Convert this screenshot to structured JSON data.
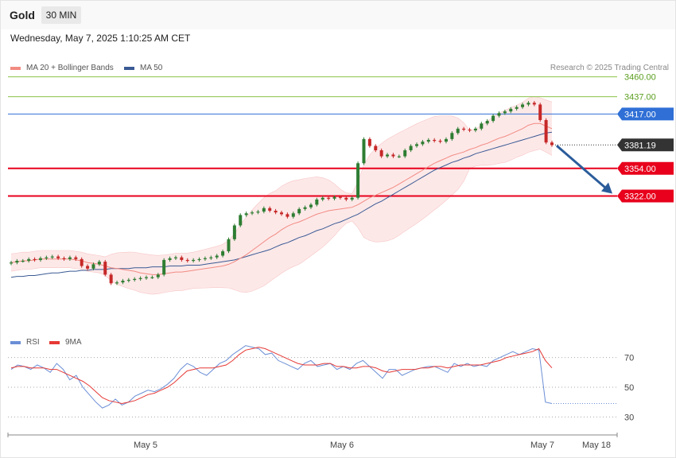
{
  "header": {
    "title": "Gold",
    "timeframe": "30 MIN",
    "datetime": "Wednesday, May 7, 2025 1:10:25 AM CET"
  },
  "legend_price": {
    "ma20": "MA 20 + Bollinger Bands",
    "ma50": "MA 50",
    "credit": "Research © 2025 Trading Central"
  },
  "legend_rsi": {
    "rsi": "RSI",
    "ma9": "9MA"
  },
  "colors": {
    "ma20": "#f28b82",
    "ma50": "#3a5a94",
    "bollinger_fill": "#fde2e2",
    "up_candle": "#2e7d32",
    "down_candle": "#c62828",
    "rsi": "#6b8fd6",
    "rsi_ma": "#e53935",
    "support": "#e8001c",
    "resistance_green": "#8bc34a",
    "pivot": "#2f6fd6",
    "last_price": "#333333",
    "arrow": "#2b5c9a"
  },
  "chart_data": [
    {
      "type": "line",
      "title": "Gold 30 MIN",
      "x_ticks": [
        "May 5",
        "May 6",
        "May 7",
        "May 18"
      ],
      "ylim": [
        3166,
        3491
      ],
      "levels": [
        {
          "label": "3460.00",
          "value": 3460.0,
          "kind": "resistance"
        },
        {
          "label": "3437.00",
          "value": 3437.0,
          "kind": "resistance"
        },
        {
          "label": "3417.00",
          "value": 3417.0,
          "kind": "pivot"
        },
        {
          "label": "3381.19",
          "value": 3381.19,
          "kind": "last"
        },
        {
          "label": "3354.00",
          "value": 3354.0,
          "kind": "support"
        },
        {
          "label": "3322.00",
          "value": 3322.0,
          "kind": "support"
        }
      ],
      "forecast_arrow": {
        "from": 3381.19,
        "to": 3322.0
      },
      "series": [
        {
          "name": "Price",
          "values": [
            3245,
            3247,
            3247,
            3249,
            3248,
            3250,
            3251,
            3252,
            3250,
            3249,
            3251,
            3249,
            3241,
            3238,
            3243,
            3246,
            3231,
            3221,
            3222,
            3224,
            3225,
            3226,
            3227,
            3228,
            3228,
            3231,
            3248,
            3250,
            3251,
            3248,
            3247,
            3248,
            3249,
            3250,
            3251,
            3253,
            3258,
            3272,
            3288,
            3300,
            3302,
            3303,
            3304,
            3308,
            3305,
            3303,
            3301,
            3298,
            3302,
            3307,
            3309,
            3312,
            3318,
            3320,
            3319,
            3321,
            3320,
            3318,
            3320,
            3360,
            3388,
            3380,
            3375,
            3368,
            3370,
            3368,
            3368,
            3375,
            3380,
            3382,
            3385,
            3387,
            3386,
            3385,
            3388,
            3395,
            3400,
            3399,
            3398,
            3400,
            3406,
            3409,
            3415,
            3418,
            3420,
            3423,
            3425,
            3428,
            3430,
            3428,
            3410,
            3384,
            3381
          ]
        },
        {
          "name": "MA 20",
          "values": [
            3245,
            3246,
            3247,
            3247,
            3248,
            3249,
            3249,
            3249,
            3249,
            3249,
            3249,
            3248,
            3247,
            3245,
            3244,
            3243,
            3241,
            3239,
            3238,
            3237,
            3236,
            3235,
            3233,
            3232,
            3231,
            3231,
            3232,
            3233,
            3234,
            3234,
            3235,
            3236,
            3237,
            3238,
            3239,
            3240,
            3241,
            3243,
            3246,
            3250,
            3254,
            3259,
            3264,
            3269,
            3274,
            3278,
            3283,
            3287,
            3290,
            3292,
            3295,
            3298,
            3301,
            3303,
            3305,
            3306,
            3307,
            3308,
            3309,
            3312,
            3316,
            3320,
            3323,
            3326,
            3329,
            3332,
            3336,
            3340,
            3344,
            3348,
            3352,
            3356,
            3360,
            3363,
            3366,
            3369,
            3371,
            3373,
            3376,
            3378,
            3381,
            3383,
            3386,
            3389,
            3391,
            3394,
            3397,
            3400,
            3404,
            3406,
            3406,
            3403,
            3400
          ]
        },
        {
          "name": "MA 50",
          "values": [
            3228,
            3229,
            3229,
            3230,
            3230,
            3231,
            3232,
            3233,
            3233,
            3234,
            3235,
            3235,
            3236,
            3236,
            3237,
            3237,
            3237,
            3238,
            3238,
            3238,
            3238,
            3239,
            3239,
            3239,
            3240,
            3240,
            3240,
            3241,
            3241,
            3241,
            3242,
            3242,
            3242,
            3243,
            3244,
            3245,
            3246,
            3247,
            3248,
            3250,
            3252,
            3254,
            3256,
            3258,
            3260,
            3263,
            3266,
            3268,
            3271,
            3274,
            3276,
            3279,
            3282,
            3284,
            3287,
            3290,
            3292,
            3295,
            3298,
            3301,
            3305,
            3309,
            3313,
            3316,
            3320,
            3324,
            3328,
            3332,
            3336,
            3340,
            3344,
            3348,
            3352,
            3355,
            3358,
            3361,
            3363,
            3366,
            3368,
            3371,
            3373,
            3375,
            3377,
            3379,
            3381,
            3383,
            3385,
            3387,
            3389,
            3391,
            3393,
            3395,
            3396
          ]
        }
      ]
    },
    {
      "type": "line",
      "title": "RSI",
      "x_ticks": [
        "May 5",
        "May 6",
        "May 7",
        "May 18"
      ],
      "ylim": [
        20,
        80
      ],
      "y_ticks": [
        30,
        50,
        70
      ],
      "series": [
        {
          "name": "RSI",
          "values": [
            62,
            65,
            64,
            62,
            65,
            63,
            60,
            66,
            62,
            55,
            58,
            50,
            45,
            40,
            36,
            38,
            42,
            38,
            40,
            44,
            46,
            48,
            47,
            49,
            52,
            56,
            62,
            66,
            64,
            60,
            58,
            62,
            66,
            68,
            72,
            75,
            78,
            77,
            76,
            72,
            73,
            68,
            66,
            64,
            62,
            66,
            68,
            64,
            65,
            66,
            62,
            64,
            62,
            66,
            68,
            64,
            60,
            56,
            62,
            62,
            58,
            60,
            62,
            63,
            64,
            64,
            62,
            60,
            66,
            64,
            66,
            64,
            65,
            64,
            68,
            70,
            72,
            74,
            72,
            74,
            76,
            75,
            40,
            39
          ]
        },
        {
          "name": "9MA",
          "values": [
            63,
            64,
            64,
            63,
            63,
            63,
            62,
            62,
            60,
            58,
            56,
            54,
            51,
            47,
            43,
            41,
            40,
            39,
            40,
            41,
            43,
            45,
            46,
            48,
            50,
            53,
            57,
            61,
            62,
            63,
            63,
            63,
            64,
            65,
            68,
            72,
            75,
            76,
            77,
            76,
            74,
            72,
            70,
            68,
            66,
            65,
            65,
            65,
            66,
            66,
            64,
            64,
            63,
            63,
            64,
            64,
            63,
            61,
            60,
            61,
            62,
            62,
            62,
            63,
            63,
            64,
            64,
            63,
            64,
            65,
            65,
            65,
            65,
            66,
            67,
            68,
            70,
            71,
            72,
            73,
            74,
            76,
            68,
            63
          ]
        }
      ]
    }
  ]
}
